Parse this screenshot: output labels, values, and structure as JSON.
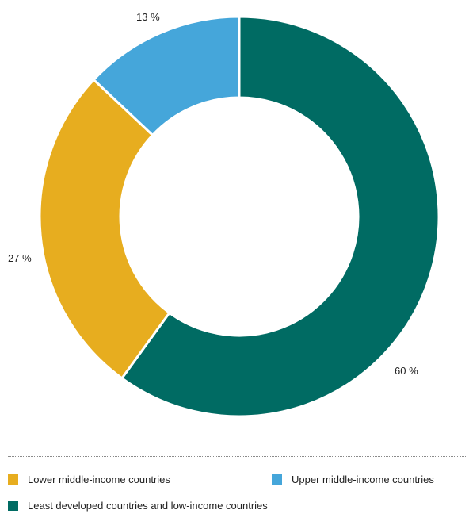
{
  "chart_data": {
    "type": "pie",
    "title": "",
    "series": [
      {
        "name": "Least developed countries and low-income countries",
        "value": 60,
        "label": "60 %",
        "color": "#006b63"
      },
      {
        "name": "Lower middle-income countries",
        "value": 27,
        "label": "27 %",
        "color": "#e7ad1f"
      },
      {
        "name": "Upper middle-income countries",
        "value": 13,
        "label": "13 %",
        "color": "#45a6da"
      }
    ],
    "legend": {
      "placement": "bottom",
      "items": [
        {
          "name": "Lower middle-income countries",
          "color": "#e7ad1f"
        },
        {
          "name": "Upper middle-income countries",
          "color": "#45a6da"
        },
        {
          "name": "Least developed countries and low-income countries",
          "color": "#006b63"
        }
      ]
    }
  }
}
